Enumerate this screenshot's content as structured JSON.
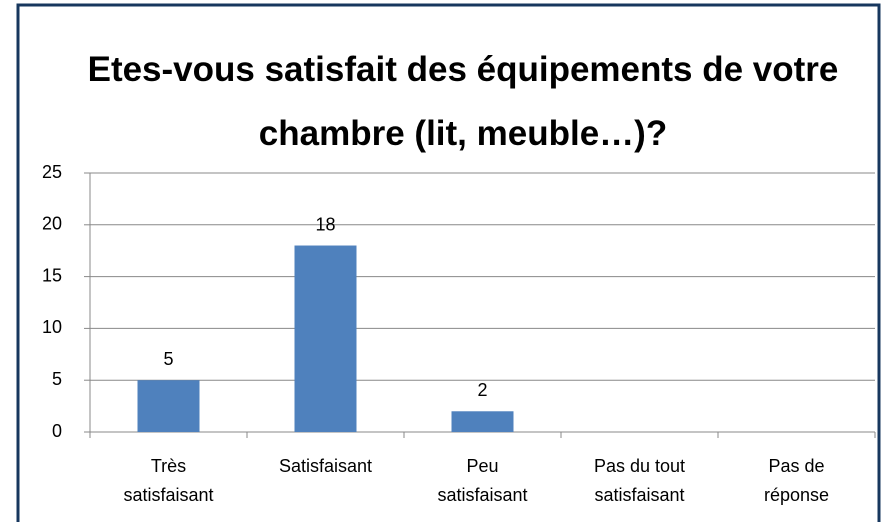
{
  "chart_data": {
    "type": "bar",
    "title": "Etes-vous satisfait des équipements de votre chambre (lit, meuble…)?",
    "categories": [
      "Très satisfaisant",
      "Satisfaisant",
      "Peu satisfaisant",
      "Pas du tout satisfaisant",
      "Pas de réponse"
    ],
    "values": [
      5,
      18,
      2,
      null,
      null
    ],
    "color": "#4f81bd",
    "ylim": [
      0,
      25
    ],
    "yticks": [
      0,
      5,
      10,
      15,
      20,
      25
    ],
    "grid": true
  }
}
